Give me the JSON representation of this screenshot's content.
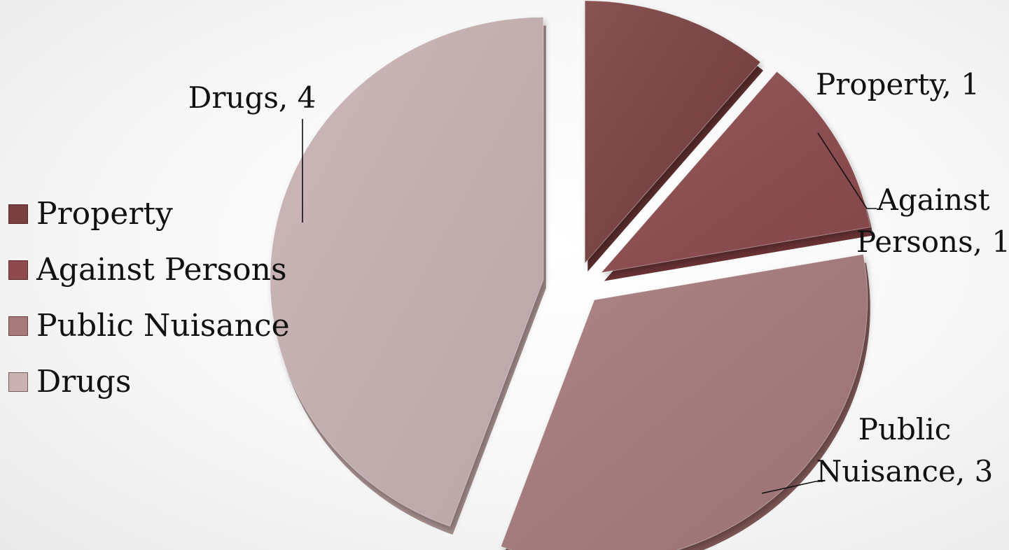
{
  "chart_data": {
    "type": "pie",
    "style": "3d-exploded",
    "title": "",
    "categories": [
      "Property",
      "Against Persons",
      "Public Nuisance",
      "Drugs"
    ],
    "values": [
      1,
      1,
      3,
      4
    ],
    "data_labels": [
      "Property, 1",
      "Against Persons, 1",
      "Public Nuisance, 3",
      "Drugs, 4"
    ],
    "colors": [
      "#7a4040",
      "#8d4b4d",
      "#a67a7b",
      "#c8b2b2"
    ],
    "side_colors": [
      "#5a2c2c",
      "#6a3335",
      "#7e5656",
      "#a38c8c"
    ],
    "legend": {
      "placement": "left",
      "entries": [
        "Property",
        "Against Persons",
        "Public Nuisance",
        "Drugs"
      ]
    }
  }
}
